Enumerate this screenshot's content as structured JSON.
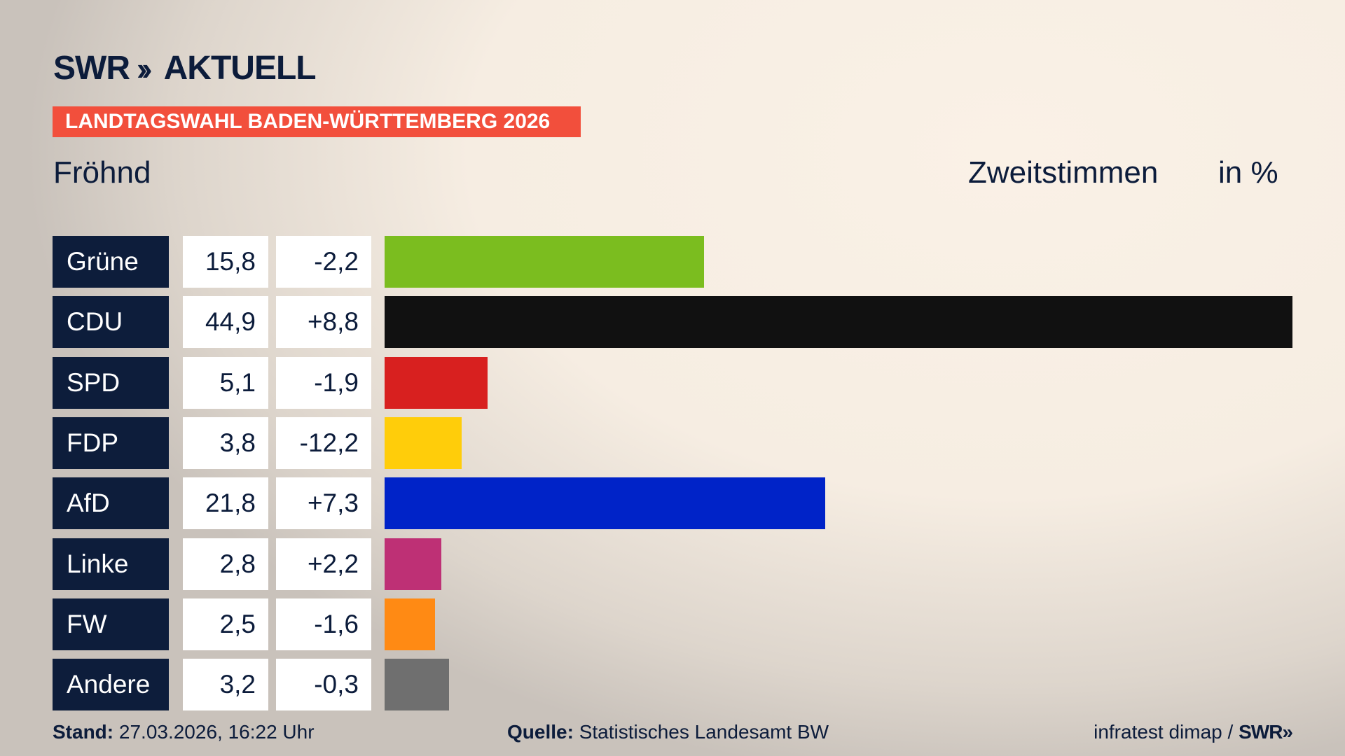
{
  "header": {
    "logo": "SWR AKTUELL",
    "logo_swr": "SWR",
    "logo_chevrons": "››",
    "logo_aktuell": "AKTUELL",
    "banner": "LANDTAGSWAHL BADEN-WÜRTTEMBERG 2026",
    "region": "Fröhnd",
    "metric": "Zweitstimmen",
    "unit": "in %"
  },
  "chart_data": {
    "type": "bar",
    "orientation": "horizontal",
    "categories": [
      "Grüne",
      "CDU",
      "SPD",
      "FDP",
      "AfD",
      "Linke",
      "FW",
      "Andere"
    ],
    "values": [
      15.8,
      44.9,
      5.1,
      3.8,
      21.8,
      2.8,
      2.5,
      3.2
    ],
    "value_labels": [
      "15,8",
      "44,9",
      "5,1",
      "3,8",
      "21,8",
      "2,8",
      "2,5",
      "3,2"
    ],
    "changes": [
      "-2,2",
      "+8,8",
      "-1,9",
      "-12,2",
      "+7,3",
      "+2,2",
      "-1,6",
      "-0,3"
    ],
    "colors": [
      "#7bbd1f",
      "#111111",
      "#d8201f",
      "#ffcd0a",
      "#0023c8",
      "#be3075",
      "#ff8a14",
      "#6f6f6f"
    ],
    "xlim": [
      0,
      44.9
    ],
    "grid": false
  },
  "footer": {
    "stand_label": "Stand:",
    "stand_value": "27.03.2026, 16:22 Uhr",
    "source_label": "Quelle:",
    "source_value": "Statistisches Landesamt BW",
    "credit": "infratest dimap /",
    "credit_logo": "SWR»"
  }
}
